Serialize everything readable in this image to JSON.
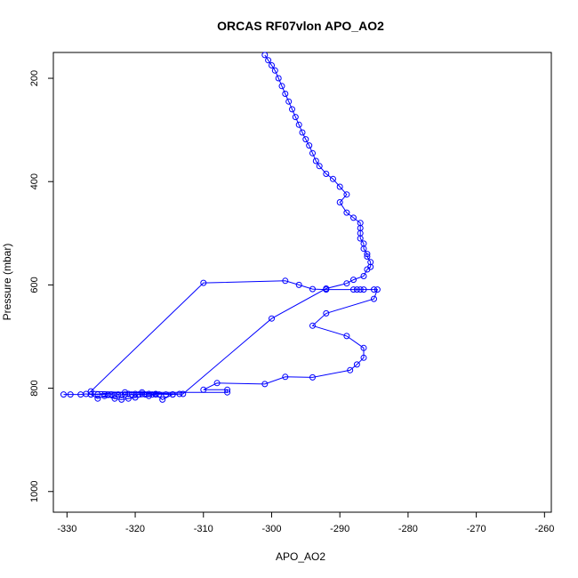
{
  "chart_data": {
    "type": "line",
    "title": "ORCAS RF07vlon APO_AO2",
    "xlabel": "APO_AO2",
    "ylabel": "Pressure (mbar)",
    "xlim": [
      -332,
      -259
    ],
    "ylim": [
      1040,
      150
    ],
    "y_reversed": true,
    "grid": false,
    "legend": "none",
    "x_ticks": [
      -330,
      -320,
      -310,
      -300,
      -290,
      -280,
      -270,
      -260
    ],
    "y_ticks": [
      200,
      400,
      600,
      800,
      1000
    ],
    "x_tick_labels": [
      "-330",
      "-320",
      "-310",
      "-300",
      "-290",
      "-280",
      "-270",
      "-260"
    ],
    "y_tick_labels": [
      "200",
      "400",
      "600",
      "800",
      "1000"
    ],
    "colors": {
      "series": "#0000ff"
    },
    "series": [
      {
        "marker": "open-circle",
        "points": [
          [
            -330.5,
            812
          ],
          [
            -329.5,
            812
          ],
          [
            -328,
            812
          ],
          [
            -327.2,
            811
          ],
          [
            -326.5,
            812
          ],
          [
            -325.5,
            812
          ],
          [
            -324.5,
            812
          ],
          [
            -324,
            813
          ],
          [
            -323.5,
            812
          ],
          [
            -323,
            813
          ],
          [
            -322.5,
            812
          ],
          [
            -322,
            813
          ],
          [
            -321.5,
            812
          ],
          [
            -321,
            811
          ],
          [
            -320.5,
            812
          ],
          [
            -320,
            811
          ],
          [
            -319.5,
            812
          ],
          [
            -319,
            811
          ],
          [
            -318.5,
            812
          ],
          [
            -318,
            811
          ],
          [
            -317.5,
            812
          ],
          [
            -317,
            811
          ],
          [
            -316.5,
            812
          ],
          [
            -315.5,
            812
          ],
          [
            -314.5,
            812
          ],
          [
            -313.5,
            811
          ],
          [
            -326.5,
            806
          ],
          [
            -310,
            596
          ],
          [
            -298,
            592
          ],
          [
            -296,
            600
          ],
          [
            -294,
            608
          ],
          [
            -292,
            609
          ],
          [
            -288,
            609
          ],
          [
            -287.5,
            609
          ],
          [
            -287,
            609
          ],
          [
            -286.5,
            609
          ],
          [
            -285,
            609
          ],
          [
            -284.5,
            609
          ],
          [
            -285,
            627
          ],
          [
            -292,
            655
          ],
          [
            -294,
            679
          ],
          [
            -289,
            699
          ],
          [
            -286.5,
            722
          ],
          [
            -286.5,
            741
          ],
          [
            -287.5,
            754
          ],
          [
            -288.5,
            765
          ],
          [
            -294,
            779
          ],
          [
            -298,
            778
          ],
          [
            -301,
            792
          ],
          [
            -308,
            790
          ],
          [
            -310,
            803
          ],
          [
            -306.5,
            803
          ],
          [
            -306.5,
            808
          ],
          [
            -319,
            808
          ],
          [
            -321.5,
            808
          ],
          [
            -326.5,
            812
          ],
          [
            -325.5,
            820
          ],
          [
            -324.5,
            815
          ],
          [
            -323,
            820
          ],
          [
            -322,
            822
          ],
          [
            -321,
            820
          ],
          [
            -320,
            818
          ],
          [
            -318,
            815
          ],
          [
            -317,
            812
          ],
          [
            -316,
            822
          ],
          [
            -314.5,
            812
          ],
          [
            -313,
            811
          ],
          [
            -300,
            665
          ],
          [
            -292,
            607
          ],
          [
            -289,
            597
          ],
          [
            -288,
            590
          ],
          [
            -286.5,
            583
          ],
          [
            -286,
            570
          ],
          [
            -285.5,
            565
          ],
          [
            -285.5,
            556
          ],
          [
            -286,
            545
          ],
          [
            -286,
            540
          ],
          [
            -286.5,
            530
          ],
          [
            -286.5,
            520
          ],
          [
            -287,
            510
          ],
          [
            -287,
            500
          ],
          [
            -287,
            490
          ],
          [
            -287,
            480
          ],
          [
            -288,
            470
          ],
          [
            -289,
            460
          ],
          [
            -290,
            440
          ],
          [
            -289,
            425
          ],
          [
            -290,
            410
          ],
          [
            -291,
            395
          ],
          [
            -292,
            385
          ],
          [
            -293,
            370
          ],
          [
            -293.5,
            360
          ],
          [
            -294,
            345
          ],
          [
            -294.5,
            330
          ],
          [
            -295,
            318
          ],
          [
            -295.5,
            305
          ],
          [
            -296,
            290
          ],
          [
            -296.5,
            275
          ],
          [
            -297,
            260
          ],
          [
            -297.5,
            245
          ],
          [
            -298,
            230
          ],
          [
            -298.5,
            215
          ],
          [
            -299,
            200
          ],
          [
            -299.5,
            185
          ],
          [
            -300,
            175
          ],
          [
            -300.5,
            165
          ],
          [
            -301,
            155
          ]
        ]
      }
    ]
  }
}
